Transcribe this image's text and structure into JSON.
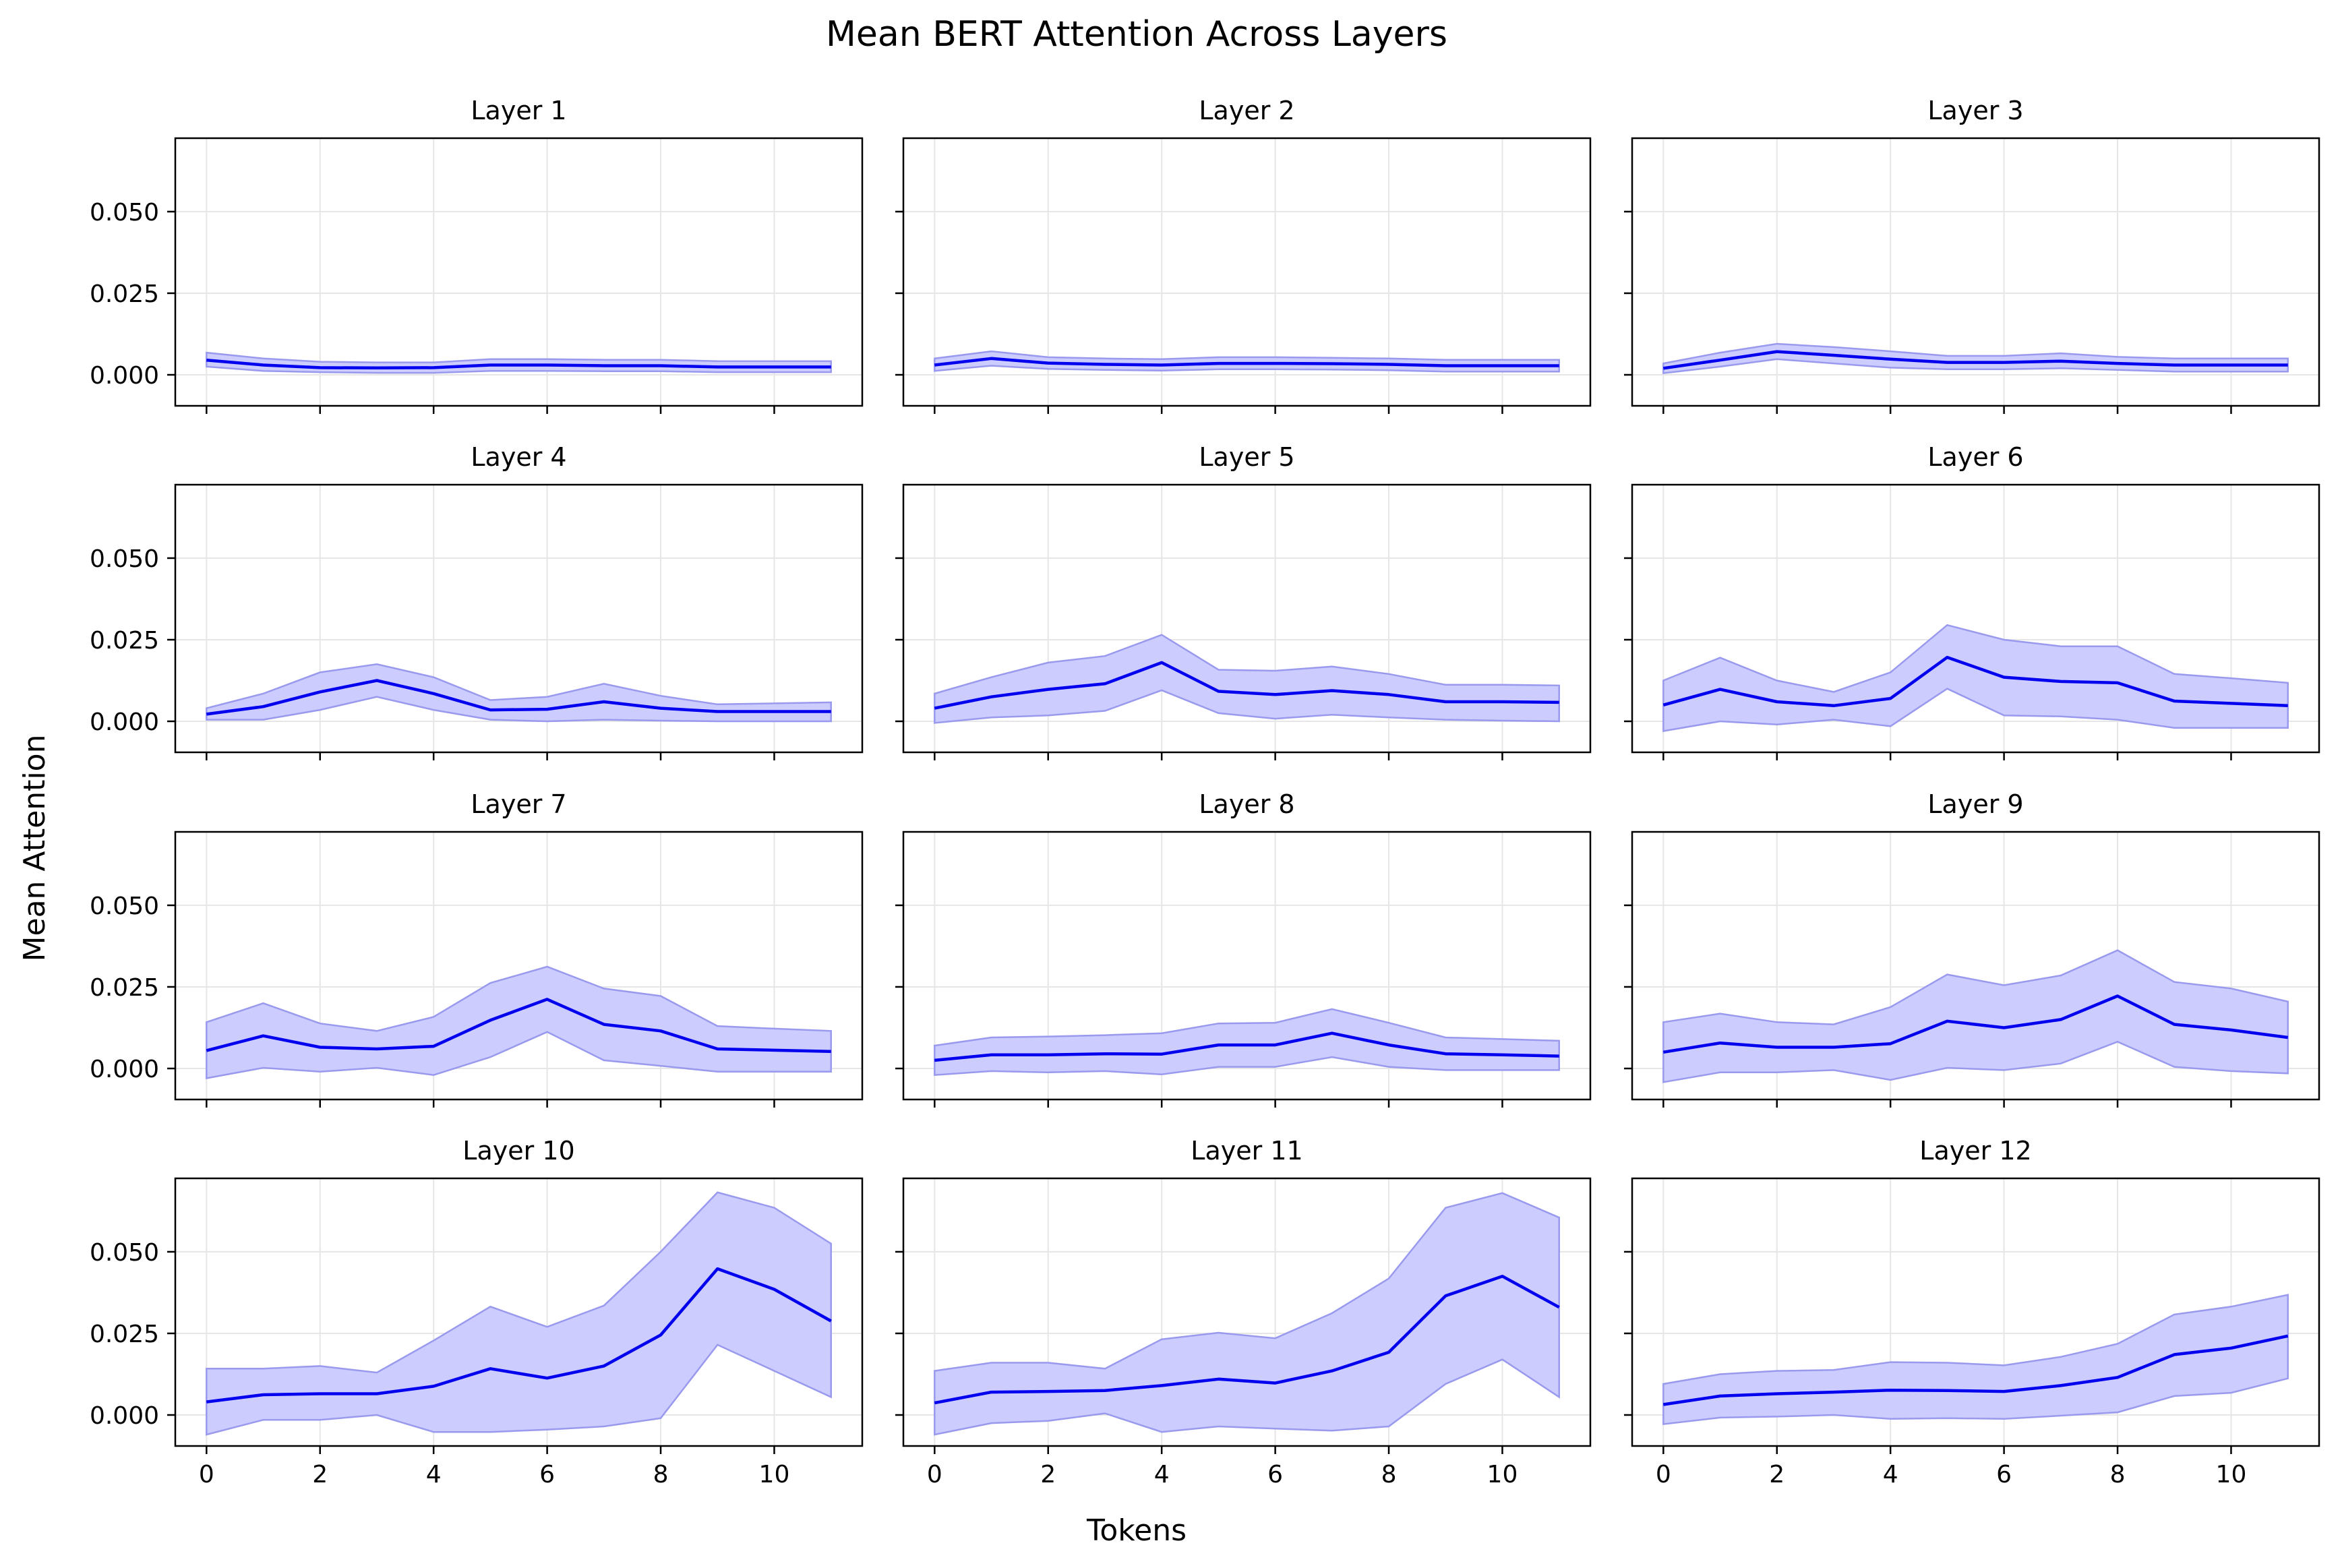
{
  "figure": {
    "title": "Mean BERT Attention Across Layers",
    "xlabel": "Tokens",
    "ylabel": "Mean Attention"
  },
  "style": {
    "line_color": "#0000ee",
    "band_color": "#ccccff",
    "band_edge_color": "#9999ee",
    "grid_color": "#e6e6e6"
  },
  "chart_data": {
    "type": "line",
    "layout": "4x3 grid of subplots, shared axes",
    "x": [
      0,
      1,
      2,
      3,
      4,
      5,
      6,
      7,
      8,
      9,
      10,
      11
    ],
    "xticks": [
      0,
      2,
      4,
      6,
      8,
      10
    ],
    "xtick_labels": [
      "0",
      "2",
      "4",
      "6",
      "8",
      "10"
    ],
    "xlim": [
      -0.55,
      11.55
    ],
    "ylim": [
      -0.0095,
      0.0725
    ],
    "yticks": [
      0.0,
      0.025,
      0.05
    ],
    "ytick_labels": [
      "0.000",
      "0.025",
      "0.050"
    ],
    "grid": true,
    "band": "shaded range around mean",
    "subplots": [
      {
        "title": "Layer 1",
        "mean": [
          0.0045,
          0.003,
          0.0022,
          0.0021,
          0.0022,
          0.003,
          0.003,
          0.0028,
          0.0028,
          0.0024,
          0.0024,
          0.0024
        ],
        "upper": [
          0.0068,
          0.005,
          0.004,
          0.0038,
          0.0038,
          0.0048,
          0.0048,
          0.0046,
          0.0046,
          0.0042,
          0.0042,
          0.0042
        ],
        "lower": [
          0.0025,
          0.0012,
          0.0008,
          0.0006,
          0.0006,
          0.0012,
          0.0012,
          0.0011,
          0.0011,
          0.0008,
          0.0008,
          0.0008
        ]
      },
      {
        "title": "Layer 2",
        "mean": [
          0.003,
          0.005,
          0.0036,
          0.0032,
          0.003,
          0.0035,
          0.0035,
          0.0034,
          0.0032,
          0.0028,
          0.0028,
          0.0028
        ],
        "upper": [
          0.005,
          0.0072,
          0.0054,
          0.005,
          0.0048,
          0.0054,
          0.0054,
          0.0052,
          0.005,
          0.0046,
          0.0046,
          0.0046
        ],
        "lower": [
          0.0012,
          0.0028,
          0.0018,
          0.0015,
          0.0013,
          0.0017,
          0.0017,
          0.0016,
          0.0014,
          0.001,
          0.001,
          0.001
        ]
      },
      {
        "title": "Layer 3",
        "mean": [
          0.002,
          0.0045,
          0.0071,
          0.006,
          0.0048,
          0.0038,
          0.0038,
          0.0042,
          0.0035,
          0.003,
          0.003,
          0.003
        ],
        "upper": [
          0.0035,
          0.0068,
          0.0095,
          0.0085,
          0.0072,
          0.0058,
          0.0058,
          0.0066,
          0.0055,
          0.005,
          0.005,
          0.005
        ],
        "lower": [
          0.0005,
          0.0025,
          0.0048,
          0.0035,
          0.0022,
          0.0017,
          0.0017,
          0.002,
          0.0015,
          0.001,
          0.001,
          0.001
        ]
      },
      {
        "title": "Layer 4",
        "mean": [
          0.0022,
          0.0045,
          0.009,
          0.0125,
          0.0085,
          0.0035,
          0.0037,
          0.006,
          0.004,
          0.003,
          0.003,
          0.003
        ],
        "upper": [
          0.004,
          0.0085,
          0.015,
          0.0175,
          0.0135,
          0.0065,
          0.0075,
          0.0115,
          0.0078,
          0.0052,
          0.0055,
          0.0058
        ],
        "lower": [
          0.0005,
          0.0005,
          0.0035,
          0.0075,
          0.0035,
          0.0005,
          0.0,
          0.0005,
          0.0002,
          0.0,
          0.0,
          0.0
        ]
      },
      {
        "title": "Layer 5",
        "mean": [
          0.004,
          0.0075,
          0.0098,
          0.0115,
          0.018,
          0.0092,
          0.0082,
          0.0094,
          0.0082,
          0.006,
          0.006,
          0.0058
        ],
        "upper": [
          0.0085,
          0.0135,
          0.018,
          0.02,
          0.0265,
          0.0158,
          0.0155,
          0.0168,
          0.0145,
          0.0112,
          0.0112,
          0.011
        ],
        "lower": [
          -0.0005,
          0.0012,
          0.0018,
          0.0032,
          0.0095,
          0.0025,
          0.0008,
          0.002,
          0.0012,
          0.0005,
          0.0002,
          0.0
        ]
      },
      {
        "title": "Layer 6",
        "mean": [
          0.005,
          0.0098,
          0.006,
          0.0048,
          0.007,
          0.0196,
          0.0135,
          0.0122,
          0.0118,
          0.0062,
          0.0055,
          0.0048
        ],
        "upper": [
          0.0125,
          0.0195,
          0.0125,
          0.009,
          0.015,
          0.0295,
          0.025,
          0.023,
          0.023,
          0.0145,
          0.0132,
          0.0118
        ],
        "lower": [
          -0.003,
          0.0,
          -0.001,
          0.0005,
          -0.0015,
          0.01,
          0.0018,
          0.0015,
          0.0005,
          -0.002,
          -0.002,
          -0.002
        ]
      },
      {
        "title": "Layer 7",
        "mean": [
          0.0055,
          0.01,
          0.0065,
          0.006,
          0.0068,
          0.0148,
          0.0212,
          0.0135,
          0.0115,
          0.006,
          0.0056,
          0.0052
        ],
        "upper": [
          0.0142,
          0.02,
          0.0138,
          0.0115,
          0.0158,
          0.0262,
          0.0312,
          0.0245,
          0.0222,
          0.013,
          0.0122,
          0.0115
        ],
        "lower": [
          -0.003,
          0.0002,
          -0.001,
          0.0002,
          -0.002,
          0.0035,
          0.0112,
          0.0025,
          0.0008,
          -0.001,
          -0.001,
          -0.001
        ]
      },
      {
        "title": "Layer 8",
        "mean": [
          0.0025,
          0.0042,
          0.0042,
          0.0045,
          0.0044,
          0.0072,
          0.0072,
          0.0108,
          0.0072,
          0.0045,
          0.0042,
          0.0038
        ],
        "upper": [
          0.007,
          0.0095,
          0.0098,
          0.0102,
          0.0108,
          0.0138,
          0.014,
          0.0182,
          0.014,
          0.0095,
          0.009,
          0.0085
        ],
        "lower": [
          -0.002,
          -0.0008,
          -0.0012,
          -0.0008,
          -0.0018,
          0.0005,
          0.0005,
          0.0035,
          0.0005,
          -0.0005,
          -0.0005,
          -0.0005
        ]
      },
      {
        "title": "Layer 9",
        "mean": [
          0.005,
          0.0078,
          0.0065,
          0.0065,
          0.0076,
          0.0145,
          0.0125,
          0.015,
          0.0222,
          0.0135,
          0.0118,
          0.0095
        ],
        "upper": [
          0.0142,
          0.0168,
          0.0142,
          0.0135,
          0.0188,
          0.0288,
          0.0255,
          0.0285,
          0.0362,
          0.0265,
          0.0245,
          0.0205
        ],
        "lower": [
          -0.0042,
          -0.0012,
          -0.0012,
          -0.0005,
          -0.0035,
          0.0002,
          -0.0005,
          0.0015,
          0.0082,
          0.0005,
          -0.0008,
          -0.0015
        ]
      },
      {
        "title": "Layer 10",
        "mean": [
          0.004,
          0.0062,
          0.0065,
          0.0065,
          0.0088,
          0.0142,
          0.0113,
          0.015,
          0.0245,
          0.0448,
          0.0385,
          0.0288
        ],
        "upper": [
          0.0142,
          0.0142,
          0.015,
          0.013,
          0.0228,
          0.0332,
          0.027,
          0.0335,
          0.05,
          0.0682,
          0.0635,
          0.0525
        ],
        "lower": [
          -0.006,
          -0.0015,
          -0.0015,
          0.0,
          -0.0052,
          -0.0052,
          -0.0045,
          -0.0035,
          -0.001,
          0.0215,
          0.0135,
          0.0055
        ]
      },
      {
        "title": "Layer 11",
        "mean": [
          0.0037,
          0.007,
          0.0072,
          0.0075,
          0.009,
          0.011,
          0.0098,
          0.0135,
          0.0192,
          0.0365,
          0.0425,
          0.033
        ],
        "upper": [
          0.0135,
          0.016,
          0.016,
          0.0142,
          0.0232,
          0.0252,
          0.0235,
          0.0312,
          0.0418,
          0.0635,
          0.068,
          0.0605
        ],
        "lower": [
          -0.006,
          -0.0025,
          -0.0018,
          0.0005,
          -0.0052,
          -0.0035,
          -0.0042,
          -0.0048,
          -0.0035,
          0.0095,
          0.017,
          0.0055
        ]
      },
      {
        "title": "Layer 12",
        "mean": [
          0.0032,
          0.0058,
          0.0065,
          0.007,
          0.0076,
          0.0075,
          0.0072,
          0.009,
          0.0115,
          0.0185,
          0.0205,
          0.0242
        ],
        "upper": [
          0.0095,
          0.0125,
          0.0135,
          0.0138,
          0.0162,
          0.016,
          0.0152,
          0.0178,
          0.0218,
          0.0308,
          0.0332,
          0.0368
        ],
        "lower": [
          -0.0028,
          -0.0008,
          -0.0005,
          0.0,
          -0.0012,
          -0.001,
          -0.0012,
          -0.0002,
          0.0008,
          0.0058,
          0.0068,
          0.0112
        ]
      }
    ]
  }
}
